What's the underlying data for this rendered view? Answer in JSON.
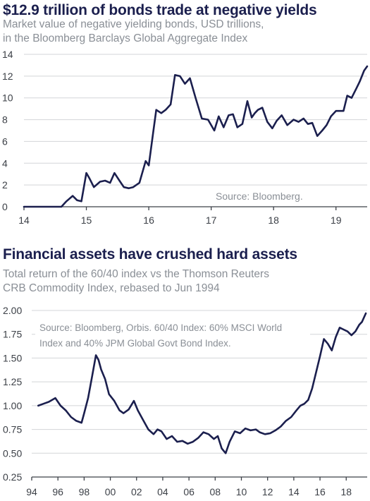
{
  "chart_data": [
    {
      "type": "line",
      "title": "$12.9 trillion of bonds trade at negative yields",
      "subtitle_lines": [
        "Market value of negative yielding bonds, USD trillions,",
        "in the Bloomberg Barclays Global Aggregate Index"
      ],
      "source": "Source: Bloomberg.",
      "xlim": [
        14,
        19.5
      ],
      "ylim": [
        0,
        14
      ],
      "x_ticks": [
        14,
        15,
        16,
        17,
        18,
        19
      ],
      "x_tick_labels": [
        "14",
        "15",
        "16",
        "17",
        "18",
        "19"
      ],
      "y_ticks": [
        0,
        2,
        4,
        6,
        8,
        10,
        12,
        14
      ],
      "y_tick_labels": [
        "0",
        "2",
        "4",
        "6",
        "8",
        "10",
        "12",
        "14"
      ],
      "grid": "horizontal",
      "line_color": "#1b1f4e",
      "series": [
        {
          "x": [
            14.0,
            14.6,
            14.68,
            14.78,
            14.85,
            14.92,
            15.0,
            15.05,
            15.12,
            15.22,
            15.3,
            15.38,
            15.45,
            15.53,
            15.6,
            15.68,
            15.75,
            15.85,
            15.95,
            16.0,
            16.07,
            16.12,
            16.2,
            16.27,
            16.35,
            16.42,
            16.5,
            16.58,
            16.66,
            16.75,
            16.85,
            16.95,
            17.05,
            17.12,
            17.2,
            17.28,
            17.35,
            17.42,
            17.5,
            17.58,
            17.65,
            17.7,
            17.75,
            17.82,
            17.9,
            17.98,
            18.05,
            18.13,
            18.22,
            18.32,
            18.4,
            18.48,
            18.55,
            18.62,
            18.7,
            18.78,
            18.85,
            18.92,
            19.0,
            19.05,
            19.12,
            19.18,
            19.25,
            19.32,
            19.38,
            19.45,
            19.5
          ],
          "y": [
            0.0,
            0.0,
            0.5,
            1.0,
            0.6,
            0.5,
            3.1,
            2.6,
            1.8,
            2.3,
            2.4,
            2.2,
            3.1,
            2.4,
            1.8,
            1.7,
            1.8,
            2.2,
            4.2,
            3.8,
            6.8,
            8.9,
            8.6,
            8.9,
            9.4,
            12.1,
            12.0,
            11.3,
            11.8,
            10.0,
            8.1,
            8.0,
            7.0,
            8.3,
            7.3,
            8.4,
            8.5,
            7.3,
            7.6,
            9.7,
            8.2,
            8.6,
            8.9,
            9.1,
            7.8,
            7.2,
            7.9,
            8.4,
            7.5,
            8.0,
            7.8,
            8.1,
            7.6,
            7.7,
            6.5,
            7.0,
            7.5,
            8.3,
            8.8,
            8.8,
            8.8,
            10.2,
            10.0,
            10.8,
            11.5,
            12.5,
            12.9
          ]
        }
      ]
    },
    {
      "type": "line",
      "title": "Financial assets have crushed hard assets",
      "subtitle_lines": [
        "Total return of the 60/40 index vs the Thomson Reuters",
        "CRB Commodity Index, rebased to Jun 1994"
      ],
      "source_lines": [
        "Source: Bloomberg, Orbis. 60/40 Index: 60% MSCI World",
        "Index and 40% JPM Global Govt Bond Index."
      ],
      "xlim": [
        1994,
        2019.6
      ],
      "ylim": [
        0.25,
        2.0
      ],
      "x_ticks": [
        1994,
        1996,
        1998,
        2000,
        2002,
        2004,
        2006,
        2008,
        2010,
        2012,
        2014,
        2016,
        2018
      ],
      "x_tick_labels": [
        "94",
        "96",
        "98",
        "00",
        "02",
        "04",
        "06",
        "08",
        "10",
        "12",
        "14",
        "16",
        "18"
      ],
      "y_ticks": [
        0.25,
        0.5,
        0.75,
        1.0,
        1.25,
        1.5,
        1.75,
        2.0
      ],
      "y_tick_labels": [
        "0.25",
        "0.50",
        "0.75",
        "1.00",
        "1.25",
        "1.50",
        "1.75",
        "2.00"
      ],
      "grid": "horizontal",
      "line_color": "#1b1f4e",
      "series": [
        {
          "x": [
            1994.5,
            1994.9,
            1995.3,
            1995.8,
            1996.2,
            1996.6,
            1997.0,
            1997.4,
            1997.8,
            1998.0,
            1998.3,
            1998.6,
            1998.9,
            1999.1,
            1999.3,
            1999.6,
            1999.9,
            2000.3,
            2000.7,
            2001.0,
            2001.4,
            2001.8,
            2002.1,
            2002.5,
            2002.9,
            2003.3,
            2003.6,
            2003.9,
            2004.3,
            2004.7,
            2005.1,
            2005.5,
            2005.9,
            2006.3,
            2006.7,
            2007.1,
            2007.5,
            2007.9,
            2008.2,
            2008.5,
            2008.8,
            2009.1,
            2009.5,
            2009.9,
            2010.3,
            2010.7,
            2011.1,
            2011.4,
            2011.8,
            2012.2,
            2012.6,
            2013.0,
            2013.4,
            2013.8,
            2014.2,
            2014.5,
            2014.8,
            2015.1,
            2015.4,
            2015.7,
            2016.0,
            2016.3,
            2016.6,
            2016.9,
            2017.2,
            2017.5,
            2017.8,
            2018.1,
            2018.4,
            2018.7,
            2019.0,
            2019.2,
            2019.5
          ],
          "y": [
            1.0,
            1.02,
            1.04,
            1.08,
            1.0,
            0.95,
            0.88,
            0.84,
            0.82,
            0.92,
            1.08,
            1.3,
            1.53,
            1.48,
            1.38,
            1.28,
            1.12,
            1.05,
            0.95,
            0.92,
            0.96,
            1.05,
            0.95,
            0.85,
            0.75,
            0.7,
            0.75,
            0.73,
            0.65,
            0.68,
            0.62,
            0.63,
            0.6,
            0.62,
            0.66,
            0.72,
            0.7,
            0.65,
            0.68,
            0.55,
            0.5,
            0.62,
            0.73,
            0.71,
            0.76,
            0.74,
            0.75,
            0.72,
            0.7,
            0.71,
            0.74,
            0.78,
            0.84,
            0.88,
            0.95,
            1.0,
            1.02,
            1.06,
            1.18,
            1.35,
            1.52,
            1.7,
            1.65,
            1.58,
            1.72,
            1.82,
            1.8,
            1.78,
            1.74,
            1.78,
            1.85,
            1.88,
            1.97
          ]
        }
      ]
    }
  ]
}
